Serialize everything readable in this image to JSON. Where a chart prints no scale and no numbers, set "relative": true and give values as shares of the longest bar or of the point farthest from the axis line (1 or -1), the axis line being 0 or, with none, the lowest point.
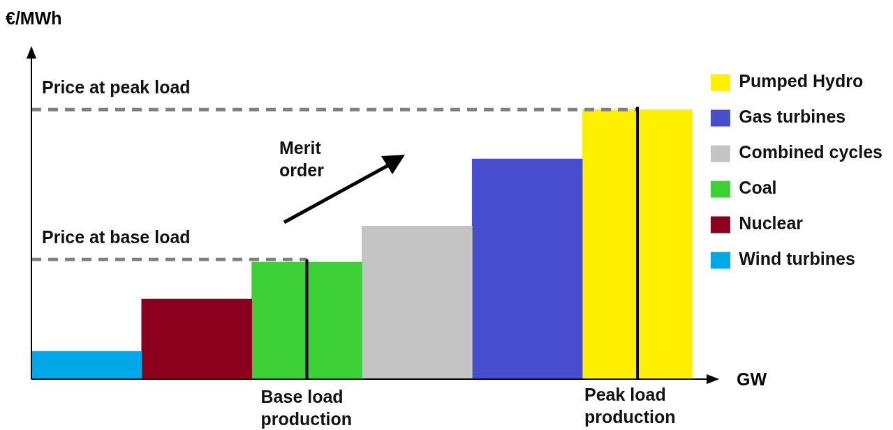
{
  "chart_data": {
    "type": "bar",
    "relative": true,
    "ylabel": "€/MWh",
    "xlabel": "GW",
    "categories": [
      null,
      null,
      null,
      null,
      null,
      null
    ],
    "series": [
      {
        "name": "Wind turbines",
        "color": "#00a8e8",
        "values": [
          0.103,
          null,
          null,
          null,
          null,
          null
        ]
      },
      {
        "name": "Nuclear",
        "color": "#8b001c",
        "values": [
          null,
          0.297,
          null,
          null,
          null,
          null
        ]
      },
      {
        "name": "Coal",
        "color": "#3ccf36",
        "values": [
          null,
          null,
          0.434,
          null,
          null,
          null
        ]
      },
      {
        "name": "Combined cycles",
        "color": "#c4c4c4",
        "values": [
          null,
          null,
          null,
          0.568,
          null,
          null
        ]
      },
      {
        "name": "Gas turbines",
        "color": "#464ecf",
        "values": [
          null,
          null,
          null,
          null,
          0.817,
          null
        ]
      },
      {
        "name": "Pumped Hydro",
        "color": "#fff000",
        "values": [
          null,
          null,
          null,
          null,
          null,
          1
        ]
      }
    ],
    "ref_lines": [
      {
        "axis": "y",
        "value": 0.444,
        "label": "Price at base load",
        "color": "#808080",
        "line_style": "dashed"
      },
      {
        "axis": "y",
        "value": 1,
        "label": "Price at peak load",
        "color": "#808080",
        "line_style": "dashed"
      }
    ],
    "annotations": [
      "Merit order",
      "Base load production",
      "Peak load production"
    ],
    "legend": "right",
    "grid": false,
    "stacked": true
  }
}
